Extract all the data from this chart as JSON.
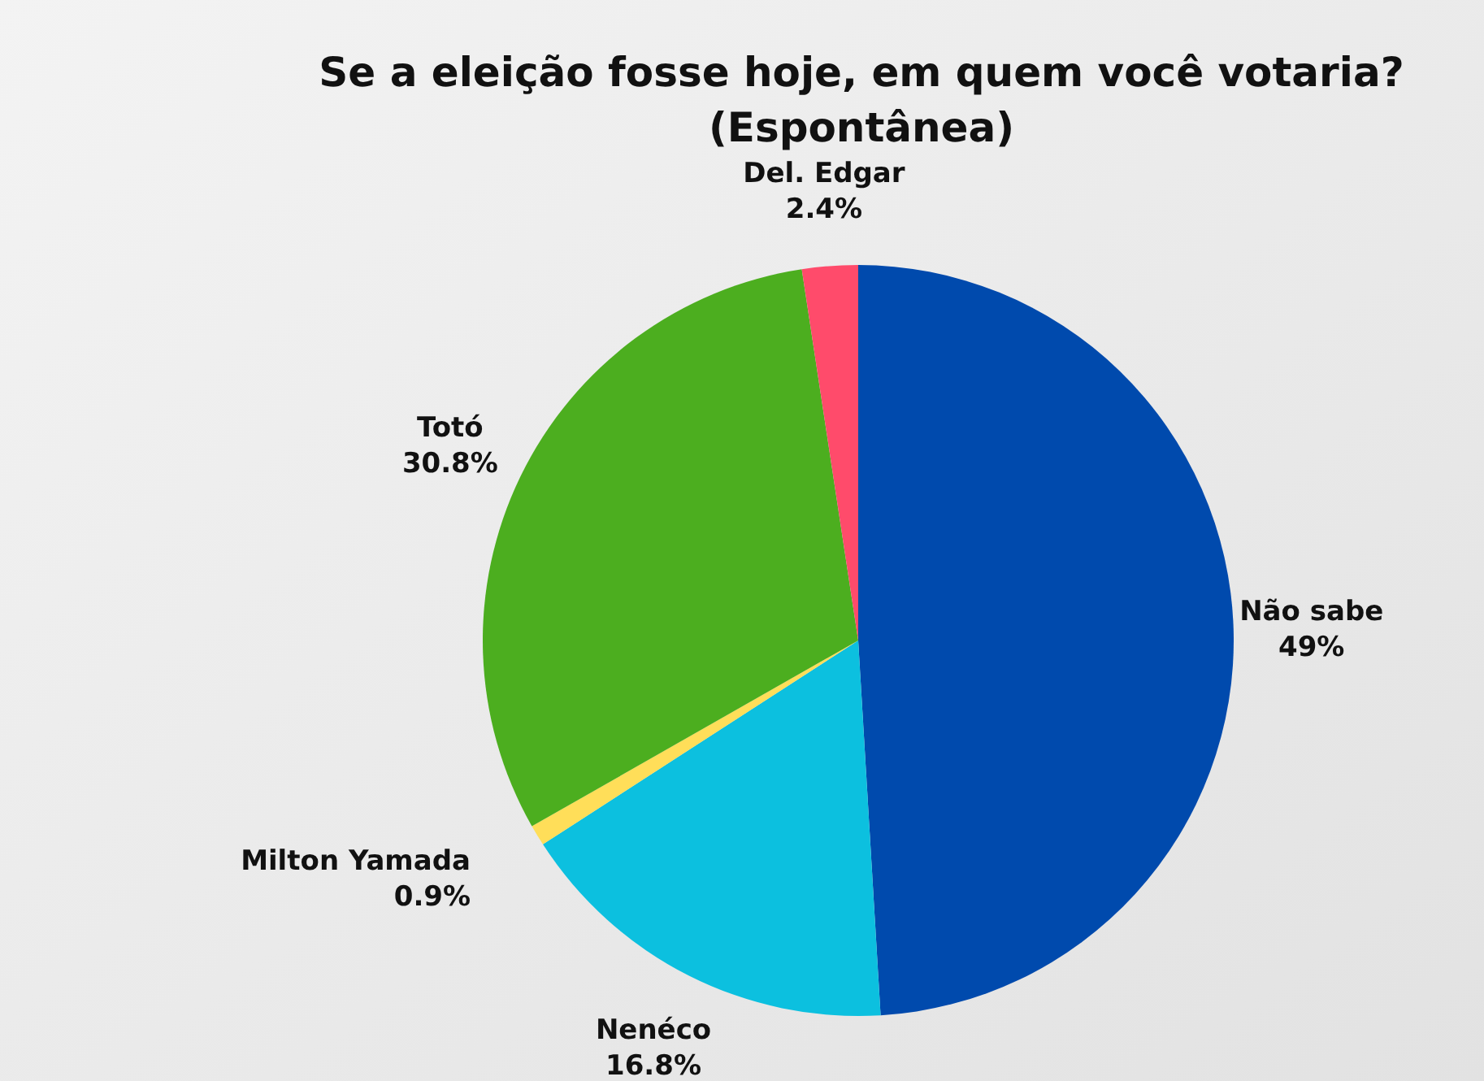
{
  "chart_data": {
    "type": "pie",
    "title": "Se a eleição fosse hoje, em quem você votaria?",
    "subtitle": "(Espontânea)",
    "categories": [
      "Não sabe",
      "Nenéco",
      "Milton Yamada",
      "Totó",
      "Del. Edgar"
    ],
    "values": [
      49,
      16.8,
      0.9,
      30.8,
      2.4
    ],
    "value_labels": [
      "49%",
      "16.8%",
      "0.9%",
      "30.8%",
      "2.4%"
    ],
    "colors": [
      "#004aad",
      "#0cc0df",
      "#ffde59",
      "#4cae1f",
      "#ff4b6b"
    ]
  }
}
